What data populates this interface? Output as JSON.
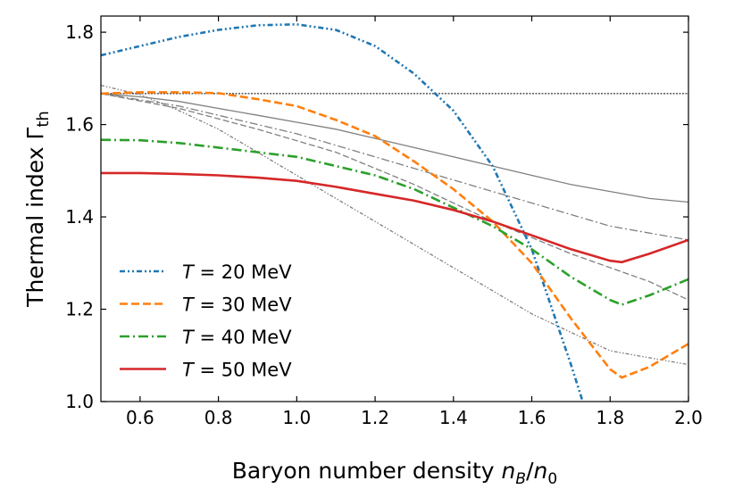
{
  "chart_data": {
    "type": "line",
    "xlabel": "Baryon number density n_B/n_0",
    "xlabel_parts": {
      "main": "Baryon number density ",
      "n": "n",
      "B": "B",
      "slash": "/",
      "n0": "n",
      "zero": "0"
    },
    "ylabel": "Thermal index Γth",
    "ylabel_parts": {
      "main": "Thermal index Γ",
      "sub": "th"
    },
    "xlim": [
      0.5,
      2.0
    ],
    "ylim": [
      1.0,
      1.835
    ],
    "xticks": [
      "0.6",
      "0.8",
      "1.0",
      "1.2",
      "1.4",
      "1.6",
      "1.8",
      "2.0"
    ],
    "yticks": [
      "1.0",
      "1.2",
      "1.4",
      "1.6",
      "1.8"
    ],
    "grid": false,
    "legend_position": "lower-left",
    "reference_line": {
      "y": 1.667,
      "color": "#000000",
      "style": "dotted"
    },
    "series": [
      {
        "name": "T = 20 MeV",
        "label_T": "T",
        "label_rest": " = 20 MeV",
        "color": "#1f77b4",
        "style": "dashdotdot",
        "x": [
          0.5,
          0.6,
          0.7,
          0.8,
          0.9,
          1.0,
          1.1,
          1.2,
          1.3,
          1.4,
          1.5,
          1.6,
          1.7,
          1.73
        ],
        "y": [
          1.75,
          1.77,
          1.79,
          1.805,
          1.815,
          1.817,
          1.805,
          1.77,
          1.71,
          1.63,
          1.51,
          1.33,
          1.08,
          1.0
        ]
      },
      {
        "name": "T = 30 MeV",
        "label_T": "T",
        "label_rest": " = 30 MeV",
        "color": "#ff7f0e",
        "style": "dashed",
        "x": [
          0.5,
          0.6,
          0.7,
          0.8,
          0.9,
          1.0,
          1.1,
          1.2,
          1.3,
          1.4,
          1.5,
          1.6,
          1.7,
          1.8,
          1.83,
          1.9,
          2.0
        ],
        "y": [
          1.667,
          1.67,
          1.67,
          1.668,
          1.655,
          1.64,
          1.61,
          1.575,
          1.52,
          1.46,
          1.39,
          1.3,
          1.18,
          1.07,
          1.052,
          1.075,
          1.125
        ]
      },
      {
        "name": "T = 40 MeV",
        "label_T": "T",
        "label_rest": " = 40 MeV",
        "color": "#2ca02c",
        "style": "dashdot",
        "x": [
          0.5,
          0.6,
          0.7,
          0.8,
          0.9,
          1.0,
          1.1,
          1.2,
          1.3,
          1.4,
          1.5,
          1.6,
          1.7,
          1.8,
          1.83,
          1.9,
          2.0
        ],
        "y": [
          1.567,
          1.566,
          1.56,
          1.55,
          1.54,
          1.53,
          1.51,
          1.49,
          1.46,
          1.42,
          1.38,
          1.33,
          1.27,
          1.22,
          1.21,
          1.23,
          1.265
        ]
      },
      {
        "name": "T = 50 MeV",
        "label_T": "T",
        "label_rest": " = 50 MeV",
        "color": "#d62728",
        "style": "solid",
        "x": [
          0.5,
          0.6,
          0.7,
          0.8,
          0.9,
          1.0,
          1.1,
          1.2,
          1.3,
          1.4,
          1.5,
          1.6,
          1.7,
          1.8,
          1.83,
          1.9,
          2.0
        ],
        "y": [
          1.495,
          1.495,
          1.493,
          1.49,
          1.485,
          1.478,
          1.465,
          1.45,
          1.435,
          1.415,
          1.39,
          1.36,
          1.33,
          1.305,
          1.302,
          1.32,
          1.35
        ]
      }
    ],
    "reference_series": [
      {
        "color": "#808080",
        "style": "solid",
        "x": [
          0.5,
          0.6,
          0.7,
          0.8,
          0.9,
          1.0,
          1.1,
          1.2,
          1.3,
          1.4,
          1.5,
          1.6,
          1.7,
          1.8,
          1.9,
          2.0
        ],
        "y": [
          1.667,
          1.66,
          1.65,
          1.635,
          1.62,
          1.605,
          1.59,
          1.57,
          1.55,
          1.53,
          1.51,
          1.49,
          1.47,
          1.455,
          1.44,
          1.432
        ]
      },
      {
        "color": "#808080",
        "style": "dashdot",
        "x": [
          0.5,
          0.7,
          0.8,
          1.0,
          1.2,
          1.4,
          1.6,
          1.8,
          2.0
        ],
        "y": [
          1.667,
          1.64,
          1.62,
          1.58,
          1.53,
          1.48,
          1.43,
          1.38,
          1.35
        ]
      },
      {
        "color": "#808080",
        "style": "dashed",
        "x": [
          0.5,
          0.7,
          0.9,
          1.1,
          1.3,
          1.5,
          1.7,
          1.9,
          2.0
        ],
        "y": [
          1.667,
          1.635,
          1.59,
          1.54,
          1.47,
          1.39,
          1.32,
          1.26,
          1.22
        ]
      },
      {
        "color": "#808080",
        "style": "dashdotdot",
        "x": [
          0.5,
          0.6,
          0.7,
          0.8,
          0.9,
          1.0,
          1.1,
          1.2,
          1.3,
          1.4,
          1.5,
          1.6,
          1.7,
          1.8,
          1.9,
          2.0
        ],
        "y": [
          1.685,
          1.665,
          1.63,
          1.59,
          1.54,
          1.49,
          1.44,
          1.39,
          1.34,
          1.29,
          1.24,
          1.19,
          1.15,
          1.11,
          1.095,
          1.08
        ]
      }
    ]
  }
}
